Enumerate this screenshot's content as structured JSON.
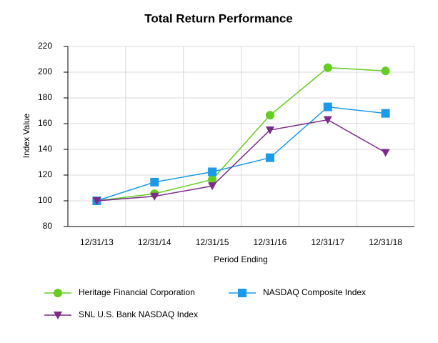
{
  "chart_data": {
    "type": "line",
    "title": "Total Return Performance",
    "x_label": "Period Ending",
    "y_label": "Index Value",
    "categories": [
      "12/31/13",
      "12/31/14",
      "12/31/15",
      "12/31/16",
      "12/31/17",
      "12/31/18"
    ],
    "series": [
      {
        "name": "Heritage Financial Corporation",
        "color": "#66cc22",
        "marker": "circle",
        "values": [
          100,
          105.5,
          116.5,
          166.5,
          203.5,
          201
        ]
      },
      {
        "name": "NASDAQ Composite Index",
        "color": "#1a9ae8",
        "marker": "square",
        "values": [
          100,
          114.5,
          122.5,
          133.5,
          173,
          168
        ]
      },
      {
        "name": "SNL U.S. Bank NASDAQ Index",
        "color": "#7b2a88",
        "marker": "triangle-down",
        "values": [
          100,
          103.5,
          111.5,
          155,
          163,
          137.5
        ]
      }
    ],
    "ylim": [
      80,
      220
    ],
    "yticks": [
      80,
      100,
      120,
      140,
      160,
      180,
      200,
      220
    ],
    "grid": true
  }
}
